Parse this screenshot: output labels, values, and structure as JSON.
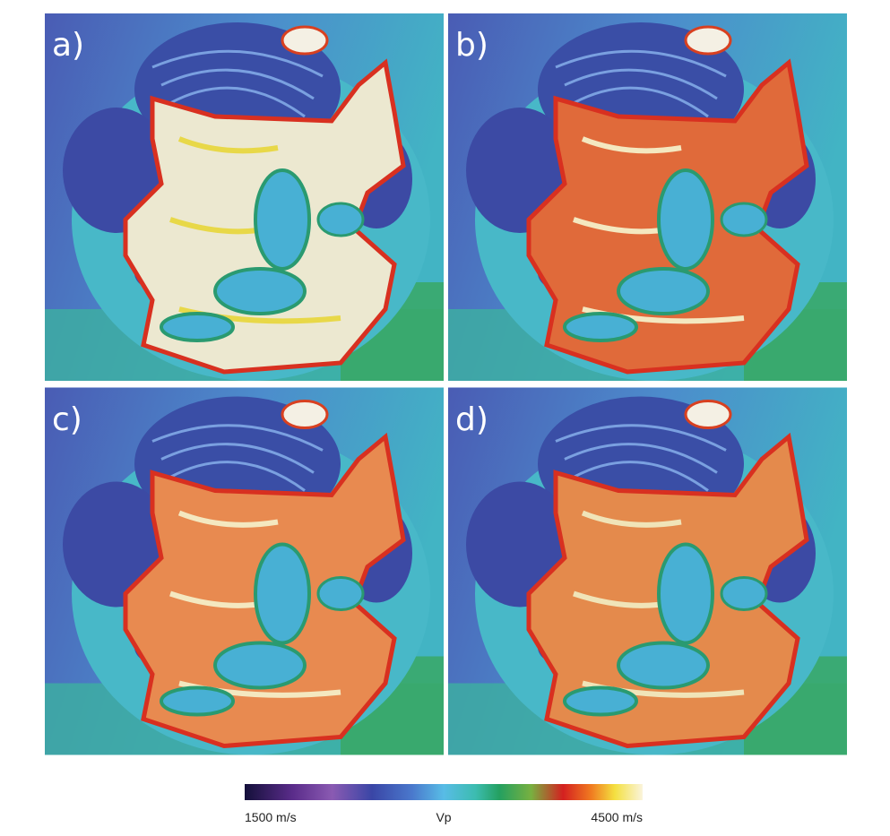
{
  "panels": [
    {
      "label": "a)"
    },
    {
      "label": "b)"
    },
    {
      "label": "c)"
    },
    {
      "label": "d)"
    }
  ],
  "colorbar": {
    "title": "Vp",
    "ticks": [
      {
        "value": 1500,
        "label": "1500 m/s"
      },
      {
        "value": 4500,
        "label": "4500 m/s"
      }
    ]
  }
}
